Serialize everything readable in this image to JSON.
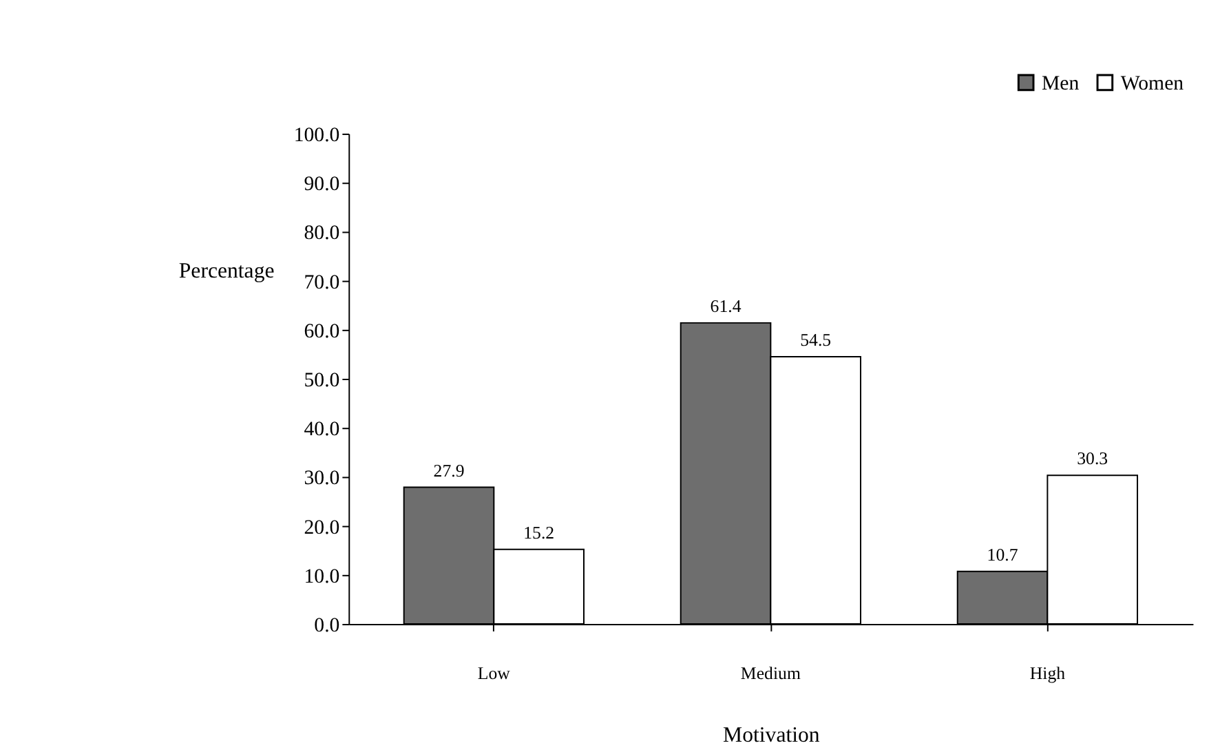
{
  "chart_data": {
    "type": "bar",
    "xlabel": "Motivation",
    "ylabel": "Percentage",
    "categories": [
      "Low",
      "Medium",
      "High"
    ],
    "series": [
      {
        "name": "Men",
        "color": "#6e6e6e",
        "values": [
          27.9,
          61.4,
          10.7
        ]
      },
      {
        "name": "Women",
        "color": "#ffffff",
        "values": [
          15.2,
          54.5,
          30.3
        ]
      }
    ],
    "ylim": [
      0,
      100
    ],
    "yticks": [
      {
        "value": 0,
        "label": "0.0"
      },
      {
        "value": 10,
        "label": "10.0"
      },
      {
        "value": 20,
        "label": "20.0"
      },
      {
        "value": 30,
        "label": "30.0"
      },
      {
        "value": 40,
        "label": "40.0"
      },
      {
        "value": 50,
        "label": "50.0"
      },
      {
        "value": 60,
        "label": "60.0"
      },
      {
        "value": 70,
        "label": "70.0"
      },
      {
        "value": 80,
        "label": "80.0"
      },
      {
        "value": 90,
        "label": "90.0"
      },
      {
        "value": 100,
        "label": "100.0"
      }
    ],
    "data_labels": true,
    "grid": false,
    "legend": "top right"
  }
}
